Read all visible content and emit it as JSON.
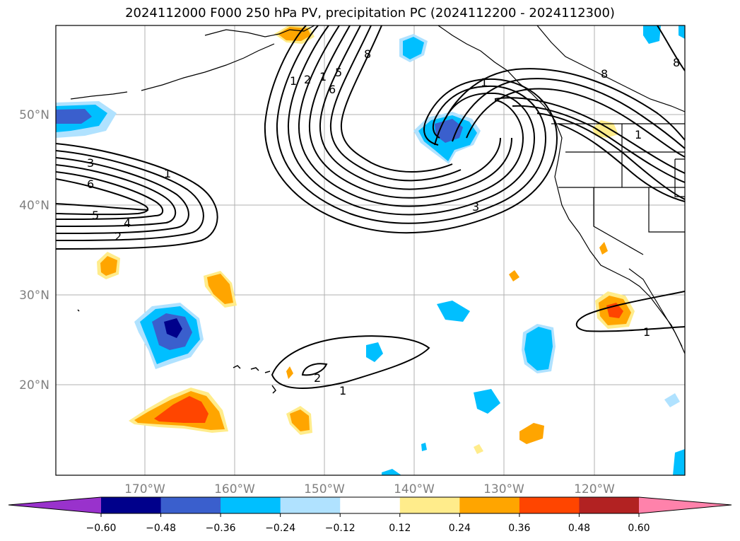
{
  "title": "2024112000 F000 250 hPa PV, precipitation PC (2024112200 - 2024112300)",
  "map": {
    "lat_labels": [
      "50°N",
      "40°N",
      "30°N",
      "20°N"
    ],
    "lon_labels": [
      "170°W",
      "160°W",
      "150°W",
      "140°W",
      "130°W",
      "120°W"
    ],
    "contour_labels": [
      "1",
      "2",
      "3",
      "4",
      "5",
      "6",
      "1",
      "2",
      "1",
      "5",
      "6",
      "8",
      "3",
      "8",
      "1",
      "2",
      "1",
      "8",
      "1",
      "1"
    ]
  },
  "colorbar": {
    "tick_labels": [
      "−0.60",
      "−0.48",
      "−0.36",
      "−0.24",
      "−0.12",
      "0.12",
      "0.24",
      "0.36",
      "0.48",
      "0.60"
    ],
    "colors": [
      "#9932cc",
      "#00008b",
      "#3a5fcd",
      "#00bfff",
      "#b0e2ff",
      "#ffffff",
      "#ffec8b",
      "#ffa500",
      "#ff4500",
      "#b22222",
      "#ff82ab"
    ]
  }
}
